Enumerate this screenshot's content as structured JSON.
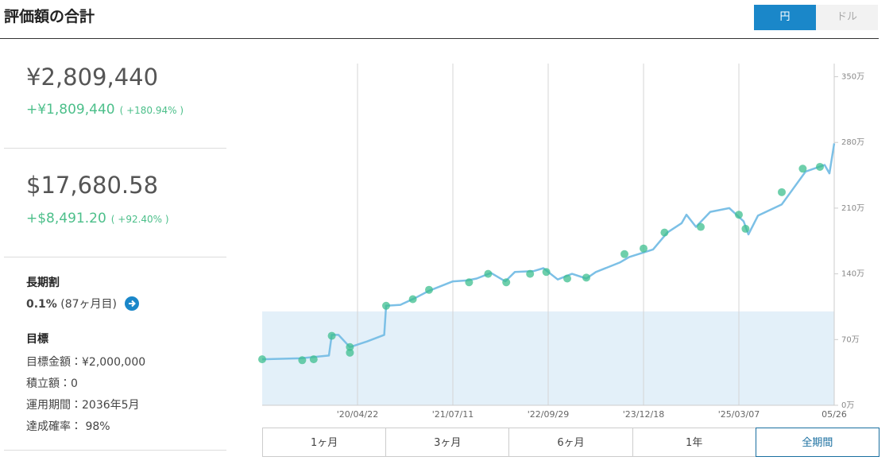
{
  "header": {
    "title": "評価額の合計",
    "currency_toggle": [
      "円",
      "ドル"
    ]
  },
  "summary": {
    "jpy": {
      "total": "¥2,809,440",
      "gain": "+¥1,809,440",
      "gain_pct": "( +180.94% )"
    },
    "usd": {
      "total": "$17,680.58",
      "gain": "+$8,491.20",
      "gain_pct": "( +92.40% )"
    },
    "long_term_discount": {
      "label": "長期割",
      "rate": "0.1%",
      "months": "(87ヶ月目)"
    },
    "goal": {
      "label": "目標",
      "items": [
        "目標金額：¥2,000,000",
        "積立額：0",
        "運用期間：2036年5月",
        "達成確率： 98%"
      ]
    }
  },
  "chart_data": {
    "type": "line",
    "x": [
      0,
      40,
      70,
      73,
      80,
      92,
      110,
      128,
      130,
      145,
      160,
      175,
      200,
      215,
      225,
      240,
      255,
      265,
      285,
      295,
      310,
      325,
      340,
      350,
      375,
      385,
      410,
      425,
      440,
      445,
      455,
      470,
      490,
      505,
      510,
      520,
      545,
      555,
      570,
      590,
      595,
      600
    ],
    "values": [
      49,
      50,
      53,
      75,
      75,
      62,
      68,
      75,
      106,
      107,
      114,
      122,
      132,
      133,
      135,
      141,
      132,
      142,
      143,
      146,
      134,
      140,
      135,
      142,
      152,
      158,
      166,
      184,
      194,
      203,
      190,
      206,
      210,
      196,
      182,
      202,
      214,
      228,
      249,
      256,
      247,
      279
    ],
    "color": "#7cc0e6",
    "markers": {
      "x": [
        0,
        42,
        54,
        73,
        92,
        92,
        130,
        158,
        175,
        217,
        237,
        256,
        281,
        298,
        320,
        340,
        380,
        400,
        422,
        460,
        500,
        507,
        545,
        567,
        585
      ],
      "values": [
        49,
        48,
        49,
        74,
        56,
        62,
        106,
        113,
        123,
        131,
        140,
        131,
        140,
        142,
        135,
        136,
        161,
        167,
        184,
        190,
        203,
        188,
        227,
        252,
        254
      ],
      "color": "#3dbf8f"
    },
    "principal_area": {
      "value": 100,
      "color": "#e3f0f9"
    },
    "xlim": [
      0,
      600
    ],
    "xticks": [
      {
        "value": 100,
        "label": "'20/04/22"
      },
      {
        "value": 200,
        "label": "'21/07/11"
      },
      {
        "value": 300,
        "label": "'22/09/29"
      },
      {
        "value": 400,
        "label": "'23/12/18"
      },
      {
        "value": 500,
        "label": "'25/03/07"
      },
      {
        "value": 600,
        "label": "05/26"
      }
    ],
    "ylim": [
      0,
      364
    ],
    "yticks": [
      {
        "value": 0,
        "label": "0万"
      },
      {
        "value": 70,
        "label": "70万"
      },
      {
        "value": 140,
        "label": "140万"
      },
      {
        "value": 210,
        "label": "210万"
      },
      {
        "value": 280,
        "label": "280万"
      },
      {
        "value": 350,
        "label": "350万"
      }
    ],
    "grid": true
  },
  "period_buttons": [
    "1ヶ月",
    "3ヶ月",
    "6ヶ月",
    "1年",
    "全期間"
  ]
}
